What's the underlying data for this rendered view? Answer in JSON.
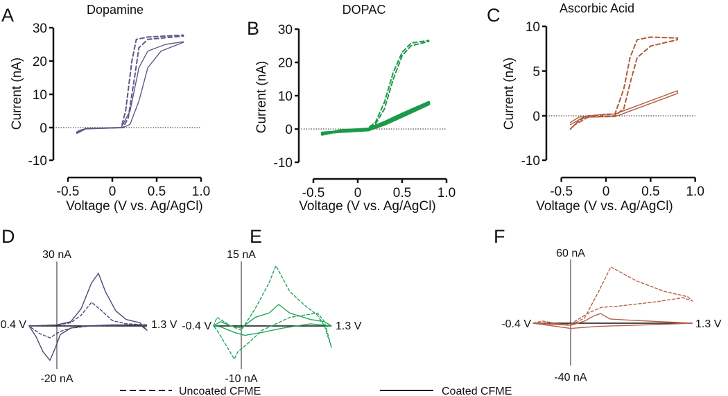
{
  "chart_data": [
    {
      "panel": "A",
      "type": "line",
      "title": "Dopamine",
      "xlabel": "Voltage (V vs. Ag/AgCl)",
      "ylabel": "Current (nA)",
      "xlim": [
        -0.5,
        1.0
      ],
      "ylim": [
        -10,
        30
      ],
      "xticks": [
        "-0.5",
        "0",
        "0.5",
        "1.0"
      ],
      "xtick_values": [
        -0.5,
        0,
        0.5,
        1.0
      ],
      "yticks": [
        "30",
        "20",
        "10",
        "0",
        "-10"
      ],
      "ytick_values": [
        30,
        20,
        10,
        0,
        -10
      ],
      "color": "#5c5a8a",
      "series": [
        {
          "name": "Uncoated CFME",
          "style": "dashed",
          "points": [
            [
              -0.4,
              -1.5
            ],
            [
              -0.3,
              -0.3
            ],
            [
              0.1,
              0
            ],
            [
              0.15,
              5
            ],
            [
              0.22,
              20
            ],
            [
              0.27,
              26.5
            ],
            [
              0.4,
              27.2
            ],
            [
              0.8,
              27.8
            ],
            [
              0.8,
              27.5
            ],
            [
              0.4,
              26.5
            ],
            [
              0.3,
              24
            ],
            [
              0.25,
              15
            ],
            [
              0.18,
              3
            ],
            [
              0.12,
              0
            ],
            [
              -0.3,
              -0.3
            ],
            [
              -0.4,
              -1.2
            ]
          ]
        },
        {
          "name": "Coated CFME",
          "style": "solid",
          "points": [
            [
              -0.4,
              -1.3
            ],
            [
              -0.3,
              -0.3
            ],
            [
              0.1,
              0
            ],
            [
              0.2,
              5
            ],
            [
              0.3,
              18
            ],
            [
              0.4,
              23
            ],
            [
              0.6,
              25
            ],
            [
              0.8,
              25.8
            ],
            [
              0.8,
              25.6
            ],
            [
              0.55,
              23
            ],
            [
              0.4,
              18
            ],
            [
              0.3,
              8
            ],
            [
              0.2,
              1
            ],
            [
              0.12,
              0
            ],
            [
              -0.3,
              -0.4
            ],
            [
              -0.4,
              -1.8
            ]
          ]
        }
      ]
    },
    {
      "panel": "B",
      "type": "line",
      "title": "DOPAC",
      "xlabel": "Voltage (V vs. Ag/AgCl)",
      "ylabel": "Current (nA)",
      "xlim": [
        -0.5,
        1.0
      ],
      "ylim": [
        -10,
        30
      ],
      "xticks": [
        "-0.5",
        "0",
        "0.5",
        "1.0"
      ],
      "xtick_values": [
        -0.5,
        0,
        0.5,
        1.0
      ],
      "yticks": [
        "30",
        "20",
        "10",
        "0",
        "-10"
      ],
      "ytick_values": [
        30,
        20,
        10,
        0,
        -10
      ],
      "color": "#1a9a4a",
      "series": [
        {
          "name": "Uncoated CFME",
          "style": "dashed",
          "points": [
            [
              -0.4,
              -1.5
            ],
            [
              -0.2,
              -0.5
            ],
            [
              0.1,
              0
            ],
            [
              0.2,
              2
            ],
            [
              0.3,
              8
            ],
            [
              0.4,
              17
            ],
            [
              0.5,
              23
            ],
            [
              0.6,
              25.8
            ],
            [
              0.8,
              26.6
            ],
            [
              0.8,
              26.3
            ],
            [
              0.6,
              25
            ],
            [
              0.5,
              22
            ],
            [
              0.4,
              15
            ],
            [
              0.3,
              6
            ],
            [
              0.2,
              1.5
            ],
            [
              0.1,
              0
            ],
            [
              -0.2,
              -0.6
            ],
            [
              -0.4,
              -1.4
            ]
          ]
        },
        {
          "name": "Coated CFME",
          "style": "solid",
          "points": [
            [
              -0.4,
              -1.6
            ],
            [
              -0.2,
              -0.5
            ],
            [
              0.12,
              0
            ],
            [
              0.3,
              2
            ],
            [
              0.5,
              4.5
            ],
            [
              0.8,
              8
            ],
            [
              0.8,
              7.5
            ],
            [
              0.5,
              3.8
            ],
            [
              0.3,
              1.4
            ],
            [
              0.12,
              -0.3
            ],
            [
              -0.2,
              -0.8
            ],
            [
              -0.4,
              -1.2
            ]
          ]
        }
      ]
    },
    {
      "panel": "C",
      "type": "line",
      "title": "Ascorbic Acid",
      "xlabel": "Voltage (V vs. Ag/AgCl)",
      "ylabel": "Current (nA)",
      "xlim": [
        -0.5,
        1.0
      ],
      "ylim": [
        -10,
        10
      ],
      "xticks": [
        "-0.5",
        "0",
        "0.5",
        "1.0"
      ],
      "xtick_values": [
        -0.5,
        0,
        0.5,
        1.0
      ],
      "yticks": [
        "10",
        "5",
        "0",
        "-10"
      ],
      "ytick_values": [
        10,
        5,
        0,
        -10
      ],
      "color": "#b05a3c",
      "series": [
        {
          "name": "Uncoated CFME",
          "style": "dashed",
          "points": [
            [
              -0.4,
              -3
            ],
            [
              -0.3,
              -1
            ],
            [
              -0.2,
              0
            ],
            [
              0.1,
              0.2
            ],
            [
              0.2,
              3
            ],
            [
              0.27,
              6.5
            ],
            [
              0.35,
              8.5
            ],
            [
              0.5,
              8.8
            ],
            [
              0.8,
              8.7
            ],
            [
              0.8,
              8.5
            ],
            [
              0.5,
              7.8
            ],
            [
              0.35,
              6.5
            ],
            [
              0.28,
              4
            ],
            [
              0.2,
              0.8
            ],
            [
              0.1,
              0
            ],
            [
              -0.2,
              -0.3
            ],
            [
              -0.35,
              -2
            ],
            [
              -0.4,
              -3
            ]
          ]
        },
        {
          "name": "Coated CFME",
          "style": "solid",
          "points": [
            [
              -0.4,
              -1.5
            ],
            [
              -0.3,
              -0.3
            ],
            [
              0,
              0.2
            ],
            [
              0.1,
              0.2
            ],
            [
              0.8,
              2.8
            ],
            [
              0.8,
              2.5
            ],
            [
              0.1,
              -0.2
            ],
            [
              -0.25,
              -0.3
            ],
            [
              -0.4,
              -2
            ]
          ]
        }
      ]
    },
    {
      "panel": "D",
      "type": "line",
      "xlim": [
        -0.4,
        1.3
      ],
      "ylim": [
        -20,
        30
      ],
      "xmin_label": "-0.4 V",
      "xmax_label": "1.3 V",
      "ymax_label": "30 nA",
      "ymin_label": "-20 nA",
      "color": "#4a4870",
      "series": [
        {
          "name": "Uncoated CFME",
          "style": "dashed",
          "points": [
            [
              -0.4,
              0
            ],
            [
              0,
              0.3
            ],
            [
              0.2,
              1.5
            ],
            [
              0.35,
              5
            ],
            [
              0.5,
              11
            ],
            [
              0.65,
              7
            ],
            [
              0.8,
              2.5
            ],
            [
              1.0,
              1
            ],
            [
              1.3,
              0.5
            ],
            [
              1.0,
              0.3
            ],
            [
              0.5,
              0
            ],
            [
              0.2,
              -1
            ],
            [
              0.05,
              -2.5
            ],
            [
              -0.1,
              -5.5
            ],
            [
              -0.25,
              -3.5
            ],
            [
              -0.38,
              -0.5
            ],
            [
              -0.4,
              0
            ]
          ]
        },
        {
          "name": "Coated CFME",
          "style": "solid",
          "points": [
            [
              -0.4,
              0
            ],
            [
              0,
              0.5
            ],
            [
              0.2,
              2
            ],
            [
              0.35,
              8
            ],
            [
              0.5,
              20
            ],
            [
              0.6,
              24.5
            ],
            [
              0.7,
              16
            ],
            [
              0.85,
              7
            ],
            [
              1.0,
              3
            ],
            [
              1.2,
              1.5
            ],
            [
              1.3,
              -2
            ],
            [
              1.2,
              0.5
            ],
            [
              0.8,
              0.5
            ],
            [
              0.4,
              0
            ],
            [
              0.2,
              -1
            ],
            [
              0.05,
              -4
            ],
            [
              -0.02,
              -10
            ],
            [
              -0.1,
              -16
            ],
            [
              -0.2,
              -12
            ],
            [
              -0.3,
              -5
            ],
            [
              -0.38,
              -1
            ],
            [
              -0.4,
              0
            ]
          ]
        }
      ]
    },
    {
      "panel": "E",
      "type": "line",
      "xlim": [
        -0.4,
        1.3
      ],
      "ylim": [
        -10,
        15
      ],
      "xmin_label": "-0.4 V",
      "xmax_label": "1.3 V",
      "ymax_label": "15 nA",
      "ymin_label": "-10 nA",
      "color": "#1fa55a",
      "series": [
        {
          "name": "Uncoated CFME",
          "style": "dashed",
          "points": [
            [
              -0.4,
              0
            ],
            [
              -0.35,
              2
            ],
            [
              -0.15,
              0
            ],
            [
              0,
              -1
            ],
            [
              0.2,
              4
            ],
            [
              0.4,
              10
            ],
            [
              0.5,
              14
            ],
            [
              0.7,
              8
            ],
            [
              0.9,
              5
            ],
            [
              1.1,
              2.5
            ],
            [
              1.2,
              0
            ],
            [
              1.3,
              -5
            ],
            [
              1.2,
              1
            ],
            [
              1.1,
              3
            ],
            [
              0.7,
              2
            ],
            [
              0.3,
              -1
            ],
            [
              0.1,
              -4
            ],
            [
              -0.05,
              -6
            ],
            [
              -0.1,
              -7.7
            ],
            [
              -0.2,
              -5
            ],
            [
              -0.35,
              -1
            ],
            [
              -0.4,
              0
            ]
          ]
        },
        {
          "name": "Coated CFME",
          "style": "solid",
          "points": [
            [
              -0.4,
              0
            ],
            [
              -0.3,
              1
            ],
            [
              -0.15,
              0
            ],
            [
              0,
              -0.5
            ],
            [
              0.2,
              2
            ],
            [
              0.4,
              3
            ],
            [
              0.54,
              5
            ],
            [
              0.7,
              3
            ],
            [
              1.0,
              1.5
            ],
            [
              1.2,
              1
            ],
            [
              1.3,
              0
            ],
            [
              1.0,
              0.5
            ],
            [
              0.6,
              -0.5
            ],
            [
              0.3,
              -1.5
            ],
            [
              0.05,
              -2.2
            ],
            [
              -0.1,
              -1.5
            ],
            [
              -0.3,
              -0.2
            ],
            [
              -0.4,
              0
            ]
          ]
        }
      ]
    },
    {
      "panel": "F",
      "type": "line",
      "xlim": [
        -0.4,
        1.3
      ],
      "ylim": [
        -40,
        60
      ],
      "xmin_label": "-0.4 V",
      "xmax_label": "1.3 V",
      "ymax_label": "60 nA",
      "ymin_label": "-40 nA",
      "color": "#b8604a",
      "series": [
        {
          "name": "Uncoated CFME",
          "style": "dashed",
          "points": [
            [
              -0.4,
              0
            ],
            [
              -0.3,
              2
            ],
            [
              -0.1,
              -1
            ],
            [
              0,
              -2
            ],
            [
              0.15,
              5
            ],
            [
              0.3,
              30
            ],
            [
              0.43,
              53
            ],
            [
              0.7,
              40
            ],
            [
              1.0,
              30
            ],
            [
              1.25,
              25
            ],
            [
              1.3,
              21
            ],
            [
              1.2,
              24
            ],
            [
              0.9,
              20
            ],
            [
              0.5,
              16
            ],
            [
              0.33,
              15
            ],
            [
              0.2,
              10
            ],
            [
              0.05,
              2
            ],
            [
              0,
              -1
            ],
            [
              -0.4,
              0
            ]
          ]
        },
        {
          "name": "Coated CFME",
          "style": "solid",
          "points": [
            [
              -0.4,
              0
            ],
            [
              0,
              -2
            ],
            [
              0.15,
              2
            ],
            [
              0.25,
              7
            ],
            [
              0.32,
              9
            ],
            [
              0.42,
              4
            ],
            [
              0.6,
              3
            ],
            [
              1.3,
              0
            ],
            [
              1.0,
              -1
            ],
            [
              0.3,
              -3
            ],
            [
              0,
              -5
            ],
            [
              -0.4,
              0
            ]
          ]
        }
      ]
    }
  ],
  "legend": {
    "dashed_label": "Uncoated CFME",
    "solid_label": "Coated CFME"
  }
}
